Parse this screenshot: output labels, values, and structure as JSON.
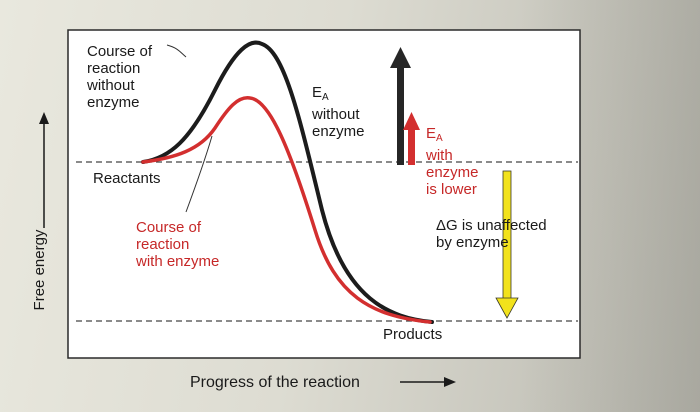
{
  "axes": {
    "y_label": "Free energy",
    "x_label": "Progress of the reaction"
  },
  "curve_labels": {
    "without_enzyme": "Course of\nreaction\nwithout\nenzyme",
    "with_enzyme": "Course of\nreaction\nwith enzyme"
  },
  "levels": {
    "reactants": "Reactants",
    "products": "Products"
  },
  "activation_energy": {
    "symbol": "E",
    "subscript": "A",
    "without_enzyme_text": "without\nenzyme",
    "with_enzyme_text": "with\nenzyme\nis lower"
  },
  "delta_g": {
    "text": "ΔG is unaffected\nby enzyme"
  },
  "colors": {
    "uncatalyzed": "#1c1c1c",
    "catalyzed": "#d32f2f",
    "delta_g_arrow": "#f2e21c",
    "ea_uncatalyzed_arrow": "#262626",
    "ea_catalyzed_arrow": "#d32f2f"
  }
}
